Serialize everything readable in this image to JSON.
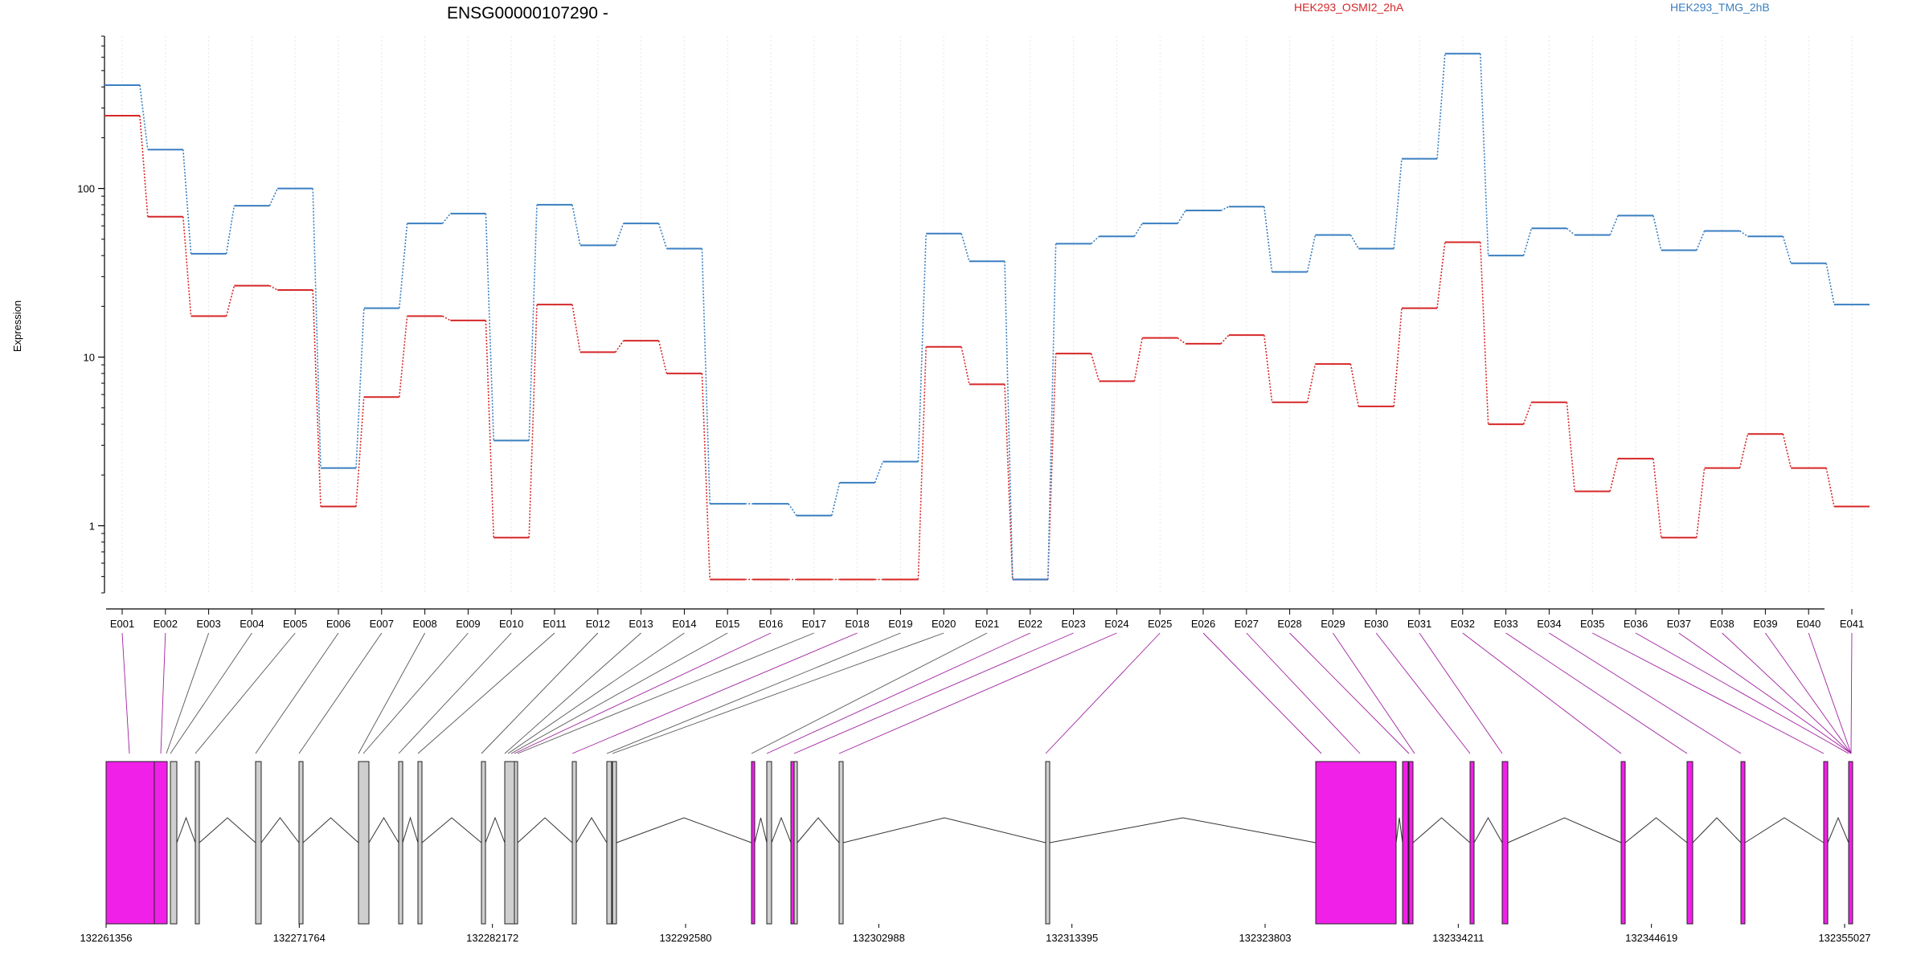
{
  "chart_data": {
    "type": "line",
    "title": "ENSG00000107290 -",
    "ylabel": "Expression",
    "xlabel": "",
    "y_scale": "log",
    "ylim": [
      0.4,
      800
    ],
    "y_ticks": [
      1,
      10,
      100
    ],
    "y_tick_labels": [
      "1",
      "10",
      "100"
    ],
    "grid": true,
    "legend": {
      "placement": "top"
    },
    "categories": [
      "E001",
      "E002",
      "E003",
      "E004",
      "E005",
      "E006",
      "E007",
      "E008",
      "E009",
      "E010",
      "E011",
      "E012",
      "E013",
      "E014",
      "E015",
      "E016",
      "E017",
      "E018",
      "E019",
      "E020",
      "E021",
      "E022",
      "E023",
      "E024",
      "E025",
      "E026",
      "E027",
      "E028",
      "E029",
      "E030",
      "E031",
      "E032",
      "E033",
      "E034",
      "E035",
      "E036",
      "E037",
      "E038",
      "E039",
      "E040",
      "E041"
    ],
    "series": [
      {
        "name": "HEK293_OSMI2_2hA",
        "color": "#d62728",
        "values": [
          270,
          68,
          17.5,
          26.5,
          25,
          1.3,
          5.8,
          17.5,
          16.5,
          0.85,
          20.5,
          10.7,
          12.5,
          8,
          0.48,
          0.48,
          0.48,
          0.48,
          0.48,
          11.5,
          6.9,
          0.48,
          10.5,
          7.2,
          13,
          12,
          13.5,
          5.4,
          9.1,
          5.1,
          19.5,
          48,
          4,
          5.4,
          1.6,
          2.5,
          0.85,
          2.2,
          3.5,
          2.2,
          1.3
        ]
      },
      {
        "name": "HEK293_TMG_2hB",
        "color": "#3a7fc1",
        "values": [
          410,
          170,
          41,
          79,
          100,
          2.2,
          19.5,
          62,
          71,
          3.2,
          80,
          46,
          62,
          44,
          1.35,
          1.35,
          1.15,
          1.8,
          2.4,
          54,
          37,
          0.48,
          47,
          52,
          62,
          74,
          78,
          32,
          53,
          44,
          150,
          630,
          40,
          58,
          53,
          69,
          43,
          56,
          52,
          36,
          20.5
        ]
      }
    ],
    "genomic_axis": {
      "tick_labels": [
        "132261356",
        "132271764",
        "132282172",
        "132292580",
        "132302988",
        "132313395",
        "132323803",
        "132334211",
        "132344619",
        "132355027"
      ]
    },
    "gene_model_exons": [
      {
        "exon": "E001",
        "highlight": true
      },
      {
        "exon": "E002",
        "highlight": true
      },
      {
        "exon": "E003",
        "highlight": false
      },
      {
        "exon": "E004",
        "highlight": false
      },
      {
        "exon": "E005",
        "highlight": false
      },
      {
        "exon": "E006",
        "highlight": false
      },
      {
        "exon": "E007",
        "highlight": false
      },
      {
        "exon": "E008",
        "highlight": false
      },
      {
        "exon": "E009",
        "highlight": false
      },
      {
        "exon": "E010",
        "highlight": false
      },
      {
        "exon": "E011",
        "highlight": false
      },
      {
        "exon": "E012",
        "highlight": false
      },
      {
        "exon": "E013",
        "highlight": false
      },
      {
        "exon": "E014",
        "highlight": false
      },
      {
        "exon": "E015",
        "highlight": false
      },
      {
        "exon": "E016",
        "highlight": true
      },
      {
        "exon": "E017",
        "highlight": false
      },
      {
        "exon": "E018",
        "highlight": true
      },
      {
        "exon": "E019",
        "highlight": false
      },
      {
        "exon": "E020",
        "highlight": false
      },
      {
        "exon": "E021",
        "highlight": false
      },
      {
        "exon": "E022",
        "highlight": true
      },
      {
        "exon": "E023",
        "highlight": true
      },
      {
        "exon": "E024",
        "highlight": true
      },
      {
        "exon": "E025",
        "highlight": true
      },
      {
        "exon": "E026",
        "highlight": true
      },
      {
        "exon": "E027",
        "highlight": true
      },
      {
        "exon": "E028",
        "highlight": true
      },
      {
        "exon": "E029",
        "highlight": true
      },
      {
        "exon": "E030",
        "highlight": true
      },
      {
        "exon": "E031",
        "highlight": true
      },
      {
        "exon": "E032",
        "highlight": true
      },
      {
        "exon": "E033",
        "highlight": true
      },
      {
        "exon": "E034",
        "highlight": true
      },
      {
        "exon": "E035",
        "highlight": true
      },
      {
        "exon": "E036",
        "highlight": true
      },
      {
        "exon": "E037",
        "highlight": true
      },
      {
        "exon": "E038",
        "highlight": true
      },
      {
        "exon": "E039",
        "highlight": true
      },
      {
        "exon": "E040",
        "highlight": true
      },
      {
        "exon": "E041",
        "highlight": true
      }
    ],
    "colors": {
      "exon_highlight": "#f020e8",
      "exon_plain": "#cfcfcf",
      "link_highlight": "#a020a0",
      "link_plain": "#555555"
    }
  }
}
